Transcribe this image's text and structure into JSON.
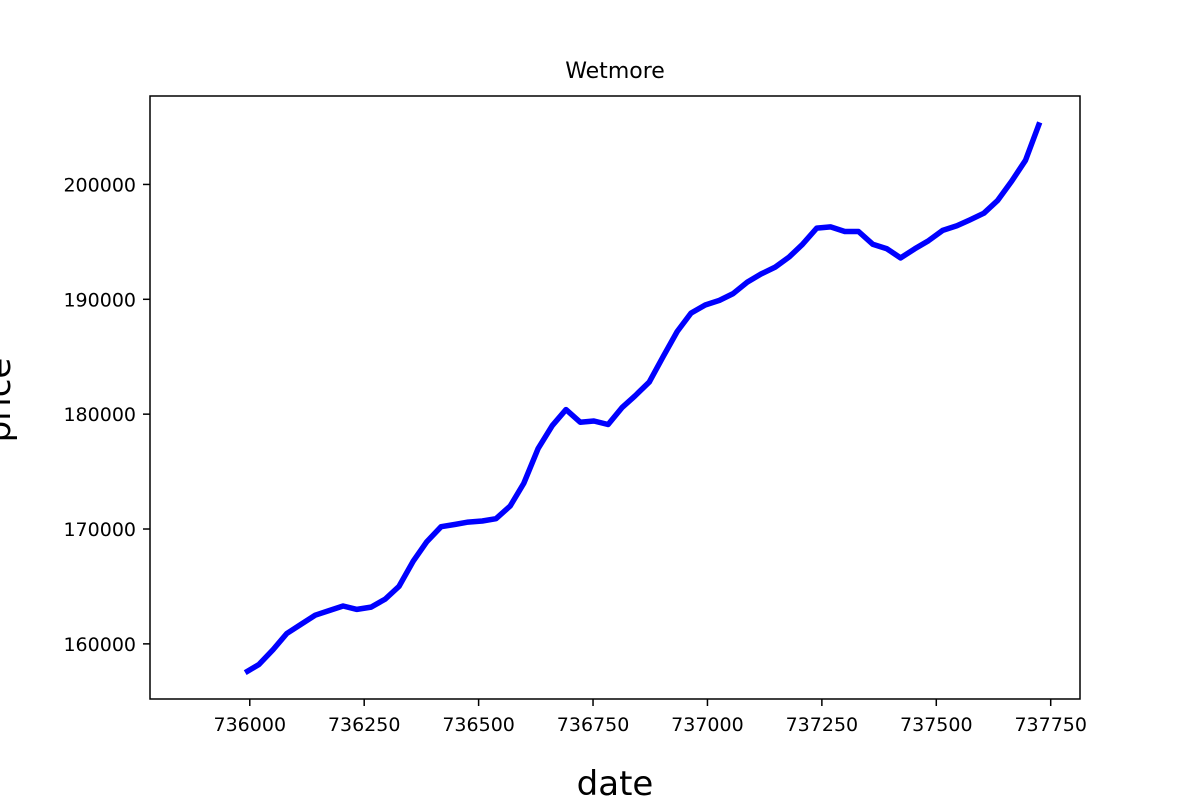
{
  "chart_data": {
    "type": "line",
    "title": "Wetmore",
    "xlabel": "date",
    "ylabel": "price",
    "xlim": [
      735782,
      737814
    ],
    "ylim": [
      155200,
      207700
    ],
    "xticks": [
      736000,
      736250,
      736500,
      736750,
      737000,
      737250,
      737500,
      737750
    ],
    "xtick_labels": [
      "736000",
      "736250",
      "736500",
      "736750",
      "737000",
      "737250",
      "737500",
      "737750"
    ],
    "yticks": [
      160000,
      170000,
      180000,
      190000,
      200000
    ],
    "ytick_labels": [
      "160000",
      "170000",
      "180000",
      "190000",
      "200000"
    ],
    "grid": false,
    "series": [
      {
        "color": "#0000ff",
        "x": [
          735990,
          736020,
          736051,
          736081,
          736112,
          736143,
          736173,
          736204,
          736234,
          736265,
          736296,
          736326,
          736357,
          736387,
          736418,
          736449,
          736477,
          736508,
          736538,
          736569,
          736599,
          736630,
          736661,
          736691,
          736722,
          736752,
          736783,
          736814,
          736842,
          736873,
          736903,
          736934,
          736964,
          736995,
          737026,
          737056,
          737087,
          737117,
          737148,
          737179,
          737208,
          737239,
          737269,
          737300,
          737330,
          737361,
          737392,
          737422,
          737453,
          737483,
          737514,
          737545,
          737573,
          737604,
          737634,
          737665,
          737695,
          737726
        ],
        "y": [
          157500,
          158200,
          159500,
          160900,
          161700,
          162500,
          162900,
          163300,
          163000,
          163200,
          163900,
          165000,
          167200,
          168900,
          170200,
          170400,
          170600,
          170700,
          170900,
          172000,
          174000,
          177000,
          179000,
          180400,
          179300,
          179400,
          179100,
          180600,
          181600,
          182800,
          185000,
          187200,
          188800,
          189500,
          189900,
          190500,
          191500,
          192200,
          192800,
          193700,
          194800,
          196200,
          196300,
          195900,
          195900,
          194800,
          194400,
          193600,
          194400,
          195100,
          196000,
          196400,
          196900,
          197500,
          198600,
          200300,
          202100,
          205400
        ]
      }
    ]
  }
}
